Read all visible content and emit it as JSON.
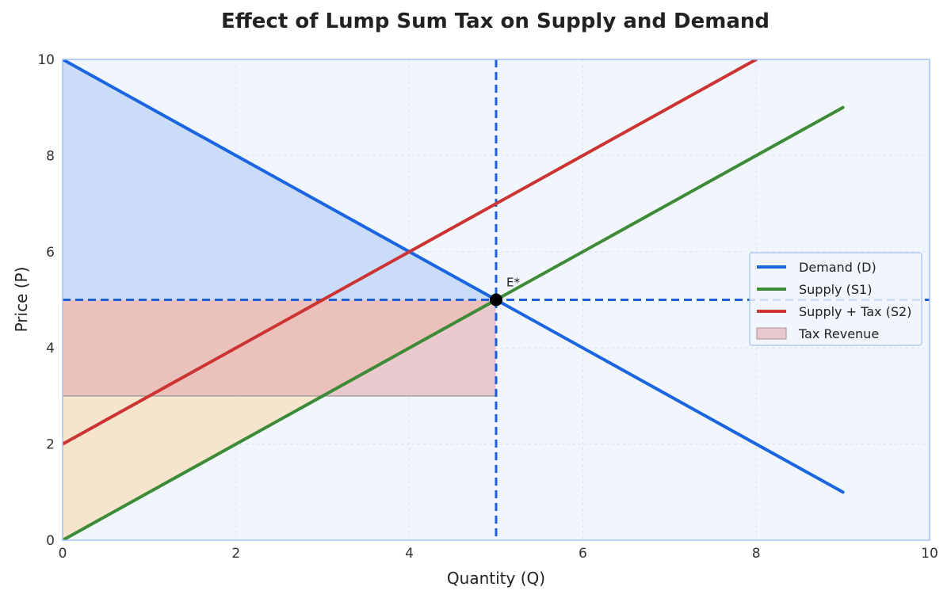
{
  "chart_data": {
    "type": "line",
    "title": "Effect of Lump Sum Tax on Supply and Demand",
    "xlabel": "Quantity (Q)",
    "ylabel": "Price (P)",
    "xlim": [
      0,
      10
    ],
    "ylim": [
      0,
      10
    ],
    "xticks": [
      0,
      2,
      4,
      6,
      8,
      10
    ],
    "yticks": [
      0,
      2,
      4,
      6,
      8,
      10
    ],
    "grid": true,
    "legend_position": "center-right",
    "series": [
      {
        "name": "Demand (D)",
        "color": "#1a66e0",
        "x": [
          0,
          9
        ],
        "y": [
          10,
          1
        ]
      },
      {
        "name": "Supply (S1)",
        "color": "#3e8b37",
        "x": [
          0,
          9
        ],
        "y": [
          0,
          9
        ]
      },
      {
        "name": "Supply + Tax (S2)",
        "color": "#cc3333",
        "x": [
          0,
          8
        ],
        "y": [
          2,
          10
        ]
      }
    ],
    "regions": [
      {
        "name": "Tax Revenue",
        "color": "#e4aaaf",
        "x_range": [
          0,
          5
        ],
        "y_range": [
          3,
          5
        ]
      }
    ],
    "shaded_areas": {
      "consumer_surplus": {
        "color": "#c4d7f8",
        "polygon": [
          [
            0,
            5
          ],
          [
            0,
            10
          ],
          [
            5,
            5
          ]
        ]
      },
      "producer_surplus": {
        "color": "#f6e2c8",
        "polygon": [
          [
            0,
            0
          ],
          [
            0,
            5
          ],
          [
            5,
            5
          ]
        ]
      }
    },
    "reference_lines": {
      "vertical_x": 5,
      "horizontal_y": 5,
      "color": "#1a5fd6"
    },
    "annotations": [
      {
        "text": "E*",
        "x": 5,
        "y": 5
      }
    ]
  }
}
